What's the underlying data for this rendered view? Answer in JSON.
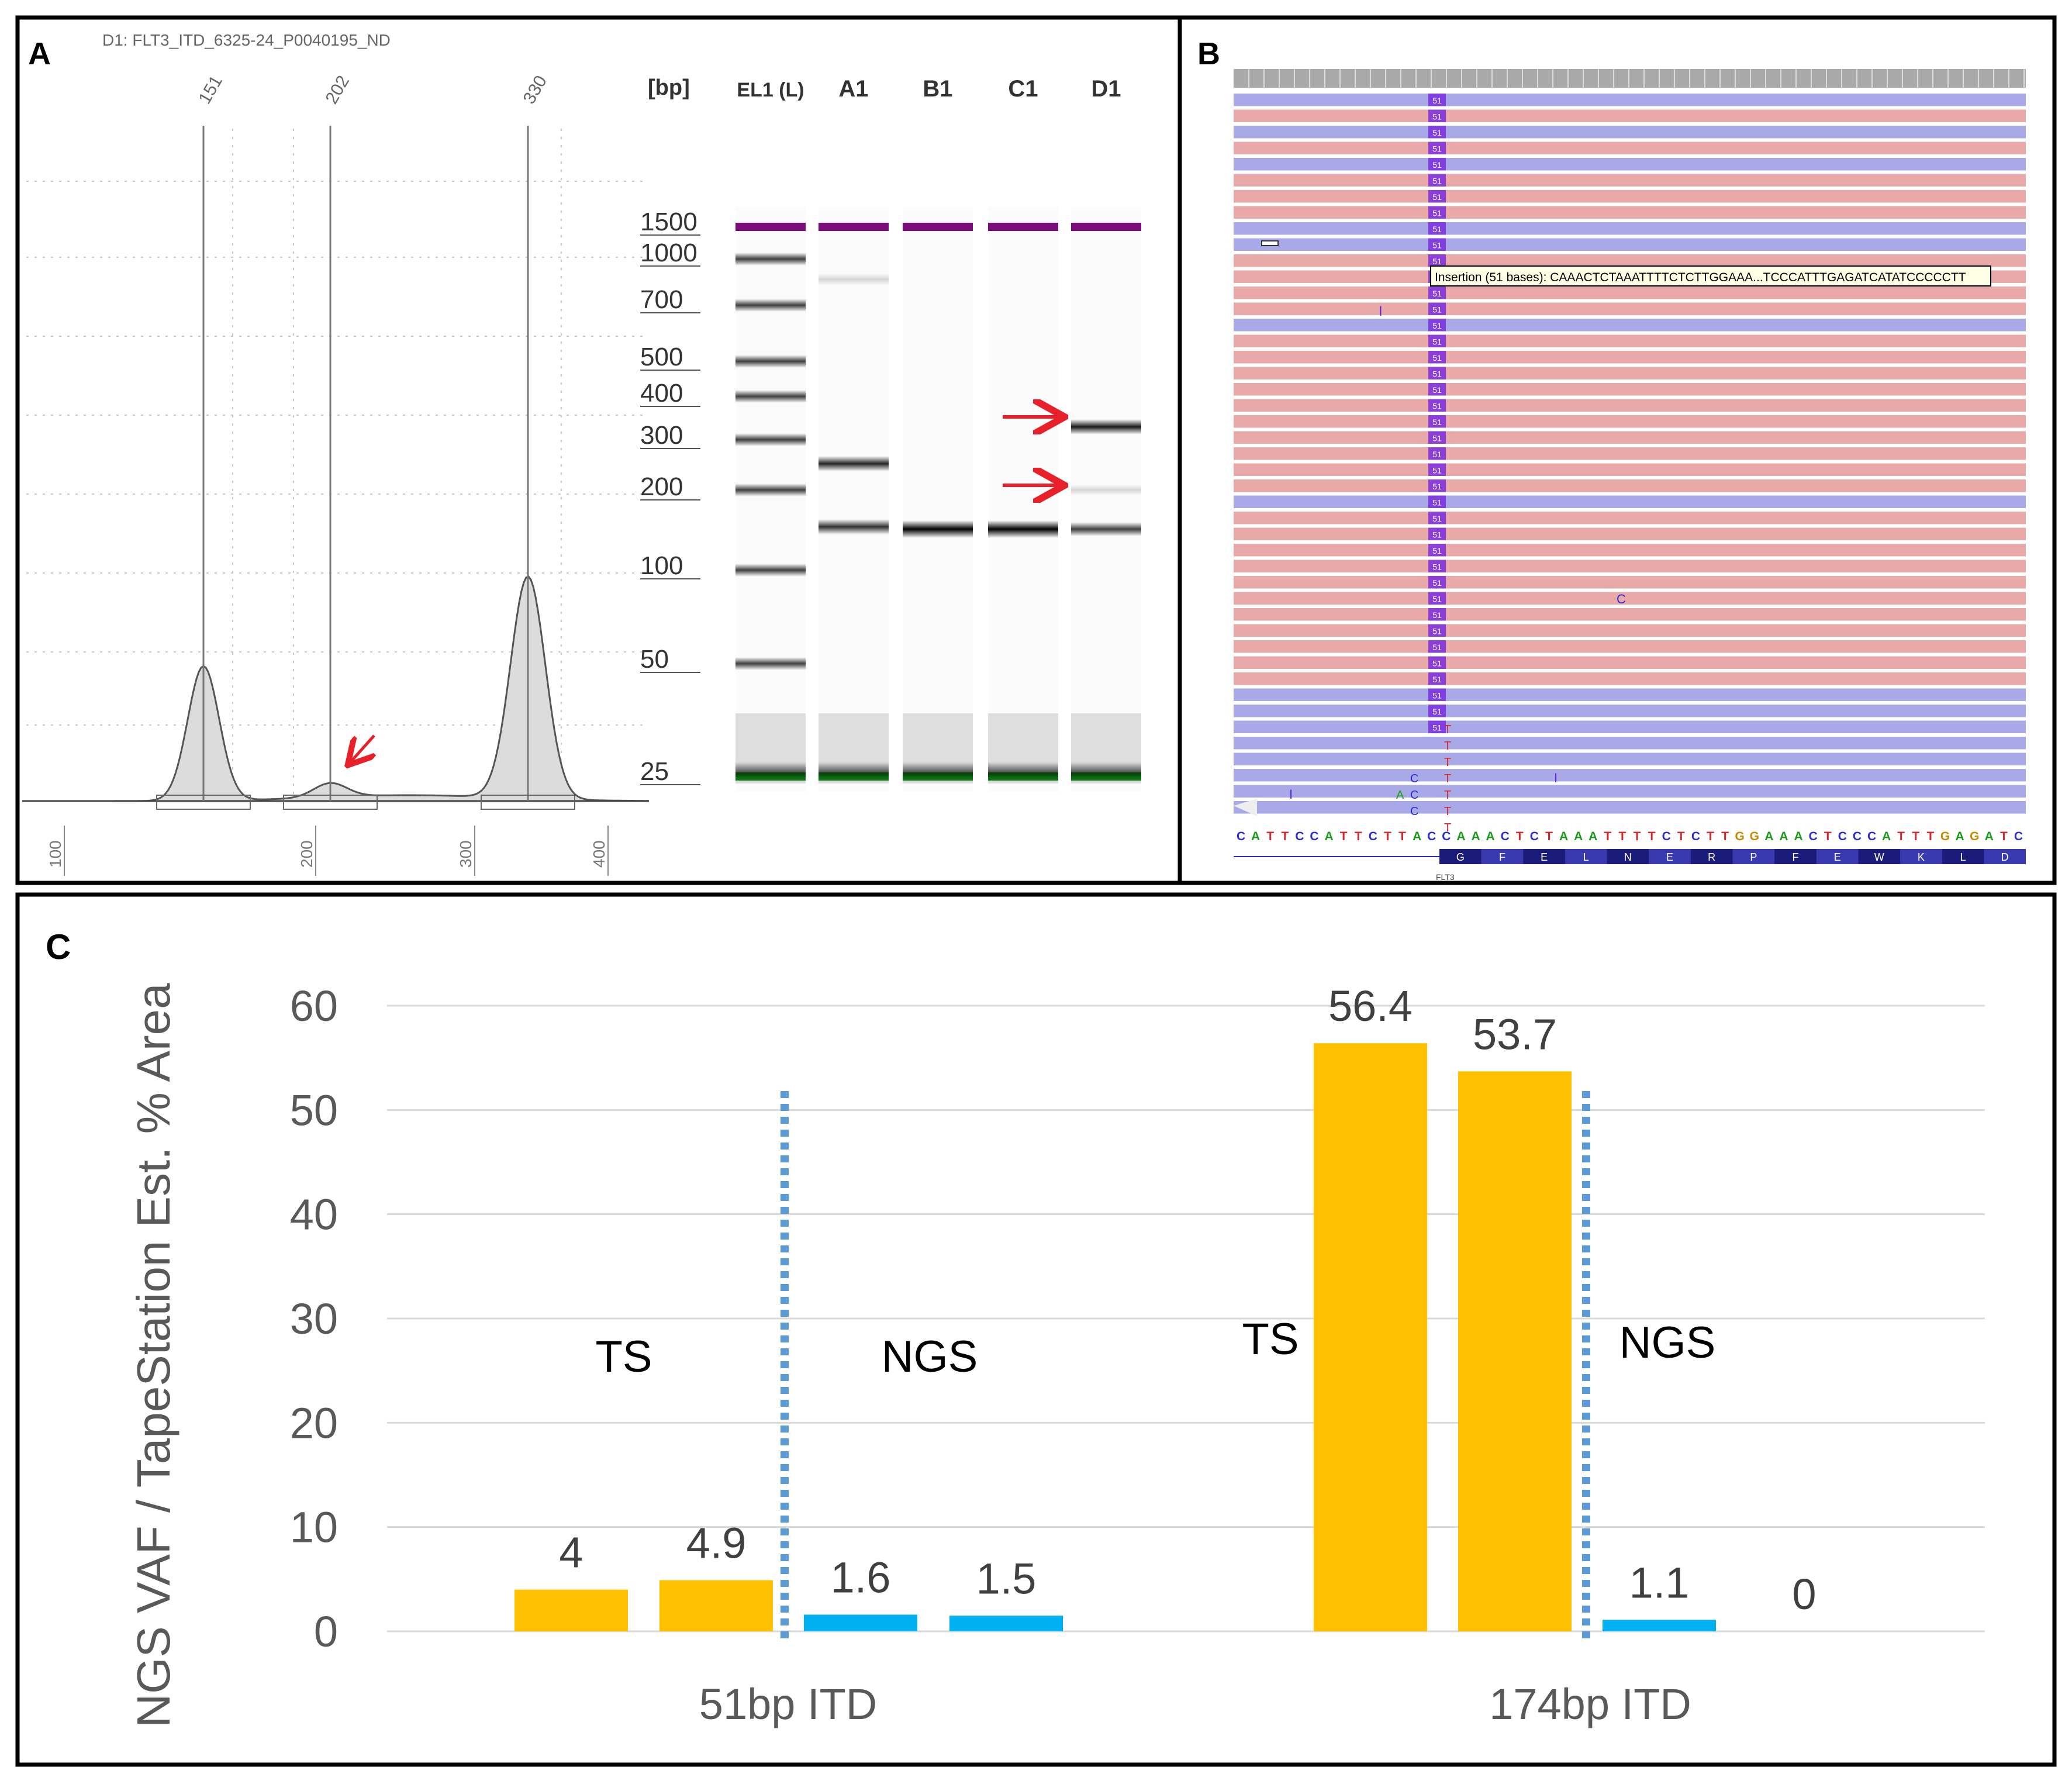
{
  "panels": {
    "A": {
      "letter": "A",
      "sample_title": "D1: FLT3_ITD_6325-24_P0040195_ND",
      "peak_labels": [
        "151",
        "202",
        "330"
      ],
      "electropherogram_x_ticks": [
        "100",
        "200",
        "300",
        "400"
      ],
      "gel": {
        "bp_header": "[bp]",
        "lane_labels": [
          "EL1 (L)",
          "A1",
          "B1",
          "C1",
          "D1"
        ],
        "ladder_bp": [
          "1500",
          "1000",
          "700",
          "500",
          "400",
          "300",
          "200",
          "100",
          "50",
          "25"
        ]
      }
    },
    "B": {
      "letter": "B",
      "read_count_label": "51",
      "variant_read_labels": [
        "5",
        "T"
      ],
      "mismatch_letters": [
        "I",
        "C",
        "T",
        "A"
      ],
      "insertion_tooltip": "Insertion (51 bases): CAAACTCTAAATTTTCTCTTGGAAA...TCCCATTTGAGATCATATCCCCCTT",
      "reference_sequence": "CATTCCATTCTTACCAAACTCTAAATTTTCTCTTGGAAACTCCCATTTGAGATC",
      "amino_acids": [
        "G",
        "F",
        "E",
        "L",
        "N",
        "E",
        "R",
        "P",
        "F",
        "E",
        "W",
        "K",
        "L",
        "D"
      ],
      "gene_label": "FLT3"
    },
    "C": {
      "letter": "C",
      "group_labels": [
        "TS",
        "NGS",
        "TS",
        "NGS"
      ]
    }
  },
  "colors": {
    "ts_bar": "#FFC000",
    "ngs_bar": "#00B0F0",
    "divider": "#5B9BD5",
    "arrow": "#E8202A",
    "ladder_marker_upper": "#7B0A7B",
    "ladder_marker_lower": "#0E8A16",
    "read_forward": "#A9A9E8",
    "read_reverse": "#E9A9A9",
    "insertion": "#7A2BE0"
  },
  "chart_data": {
    "type": "bar",
    "title": "",
    "xlabel": "",
    "ylabel": "NGS VAF / TapeStation Est. % Area",
    "ylim": [
      0,
      60
    ],
    "yticks": [
      0,
      10,
      20,
      30,
      40,
      50,
      60
    ],
    "groups": [
      {
        "name": "51bp ITD",
        "bars": [
          {
            "method": "TS",
            "value": 4,
            "label": "4"
          },
          {
            "method": "TS",
            "value": 4.9,
            "label": "4.9"
          },
          {
            "method": "NGS",
            "value": 1.6,
            "label": "1.6"
          },
          {
            "method": "NGS",
            "value": 1.5,
            "label": "1.5"
          }
        ]
      },
      {
        "name": "174bp ITD",
        "bars": [
          {
            "method": "TS",
            "value": 56.4,
            "label": "56.4"
          },
          {
            "method": "TS",
            "value": 53.7,
            "label": "53.7"
          },
          {
            "method": "NGS",
            "value": 1.1,
            "label": "1.1"
          },
          {
            "method": "NGS",
            "value": 0,
            "label": "0"
          }
        ]
      }
    ]
  }
}
